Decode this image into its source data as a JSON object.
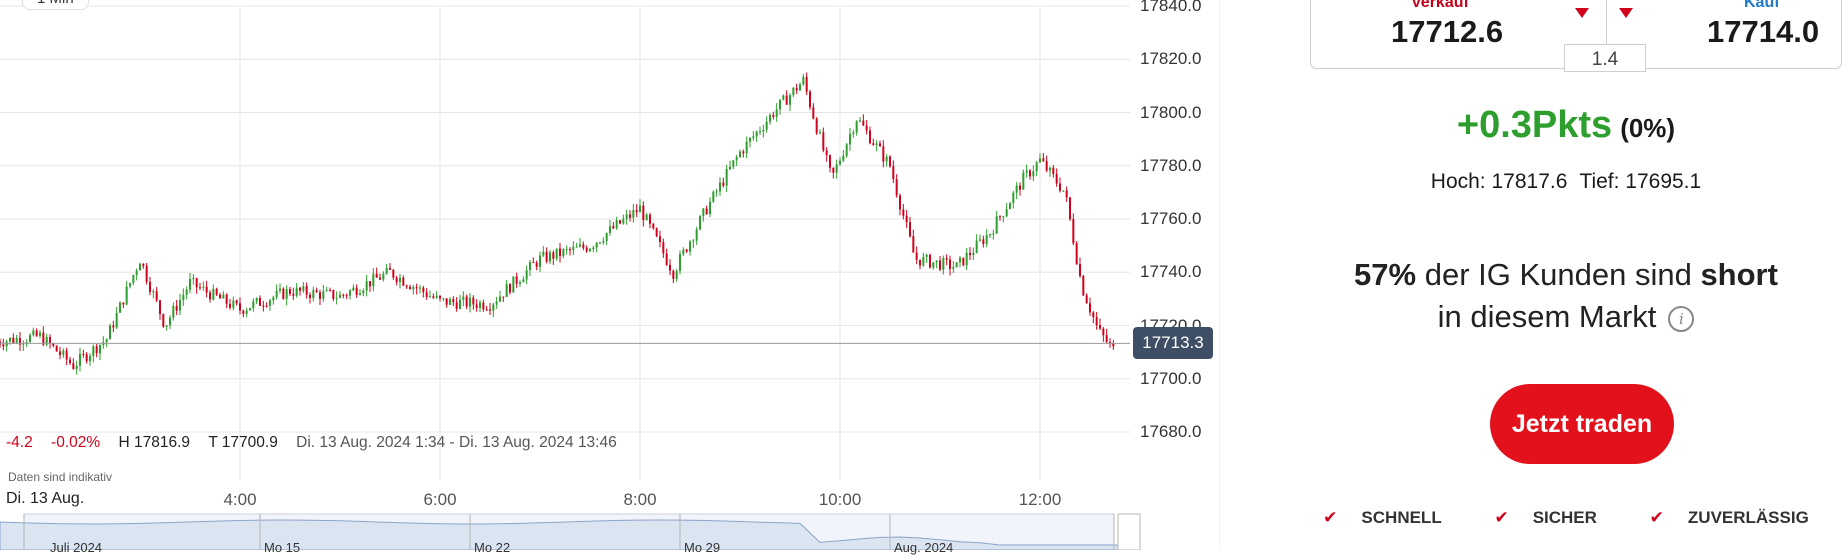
{
  "chart": {
    "interval": "1 Min",
    "stats": {
      "change_points": "-4.2",
      "change_percent": "-0.02%",
      "high": "H 17816.9",
      "low": "T 17700.9",
      "range": "Di. 13 Aug. 2024 1:34 - Di. 13 Aug. 2024 13:46"
    },
    "indicative_note": "Daten sind indikativ",
    "date_label": "Di. 13 Aug.",
    "x_labels": [
      "4:00",
      "6:00",
      "8:00",
      "10:00",
      "12:00"
    ],
    "y_labels": [
      "17840.0",
      "17820.0",
      "17800.0",
      "17780.0",
      "17760.0",
      "17740.0",
      "17720.0",
      "17700.0",
      "17680.0"
    ],
    "current_price_tag": "17713.3",
    "navigator_labels": [
      "Juli 2024",
      "Mo 15",
      "Mo 22",
      "Mo 29",
      "Aug. 2024"
    ],
    "colors": {
      "up": "#2e9e2e",
      "down": "#d0021b",
      "grid": "#e6e6e6",
      "price_tag": "#3e4e65"
    }
  },
  "chart_data": {
    "type": "candlestick",
    "x_range": [
      "1:34",
      "13:46"
    ],
    "ylim": [
      17680,
      17840
    ],
    "ticks_x": [
      "4:00",
      "6:00",
      "8:00",
      "10:00",
      "12:00"
    ],
    "path": [
      [
        "1:34",
        17714
      ],
      [
        "2:00",
        17716
      ],
      [
        "2:20",
        17705
      ],
      [
        "2:40",
        17715
      ],
      [
        "3:00",
        17745
      ],
      [
        "3:15",
        17720
      ],
      [
        "3:30",
        17736
      ],
      [
        "4:00",
        17726
      ],
      [
        "4:30",
        17733
      ],
      [
        "5:00",
        17731
      ],
      [
        "5:30",
        17740
      ],
      [
        "6:00",
        17729
      ],
      [
        "6:30",
        17728
      ],
      [
        "7:00",
        17745
      ],
      [
        "7:30",
        17750
      ],
      [
        "8:00",
        17764
      ],
      [
        "8:20",
        17740
      ],
      [
        "8:40",
        17764
      ],
      [
        "9:00",
        17785
      ],
      [
        "9:20",
        17800
      ],
      [
        "9:38",
        17812
      ],
      [
        "9:55",
        17775
      ],
      [
        "10:10",
        17798
      ],
      [
        "10:30",
        17780
      ],
      [
        "10:45",
        17745
      ],
      [
        "11:10",
        17742
      ],
      [
        "11:30",
        17755
      ],
      [
        "11:50",
        17775
      ],
      [
        "12:00",
        17782
      ],
      [
        "12:15",
        17770
      ],
      [
        "12:25",
        17735
      ],
      [
        "12:35",
        17718
      ],
      [
        "12:45",
        17710
      ]
    ],
    "current_price": 17713.3,
    "high": 17816.9,
    "low": 17700.9
  },
  "quote": {
    "sell_label": "Verkauf",
    "sell_price": "17712.6",
    "buy_label": "Kauf",
    "buy_price": "17714.0",
    "spread": "1.4",
    "change_points": "+0.3Pkts",
    "change_percent": "(0%)",
    "high": "Hoch: 17817.6",
    "low": "Tief: 17695.1"
  },
  "sentiment": {
    "percent": "57%",
    "text_before": " der IG Kunden sind ",
    "direction": "short",
    "line2": "in diesem Markt"
  },
  "cta": {
    "label": "Jetzt traden"
  },
  "features": [
    "SCHNELL",
    "SICHER",
    "ZUVERLÄSSIG"
  ]
}
